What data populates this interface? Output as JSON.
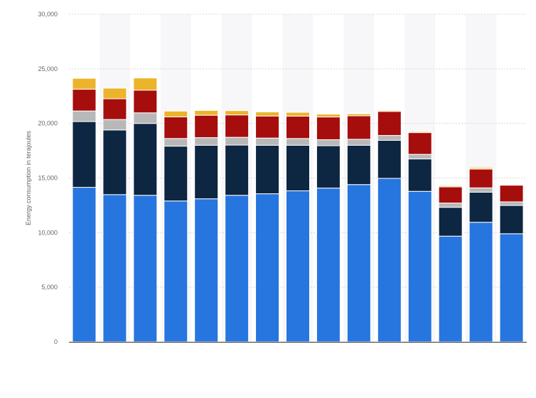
{
  "chart_data": {
    "type": "bar",
    "stacked": true,
    "title": "",
    "xlabel": "",
    "ylabel": "Energy consumption in terajoules",
    "ylim": [
      0,
      30000
    ],
    "yticks": [
      0,
      5000,
      10000,
      15000,
      20000,
      25000,
      30000
    ],
    "ytick_labels": [
      "0",
      "5,000",
      "10,000",
      "15,000",
      "20,000",
      "25,000",
      "30,000"
    ],
    "grid": true,
    "legend": "none",
    "colors": {
      "series": [
        "#2775df",
        "#0d2641",
        "#b8b8b8",
        "#a60d0d",
        "#ecb42a",
        "#efdfae"
      ],
      "grid": "#d8d8d8",
      "axis": "#333333",
      "alt_band": "#f7f7f9"
    },
    "categories": [
      "",
      "",
      "",
      "",
      "",
      "",
      "",
      "",
      "",
      "",
      "",
      "",
      "",
      "",
      ""
    ],
    "series": [
      {
        "values": [
          14150,
          13480,
          13420,
          12900,
          13100,
          13420,
          13560,
          13830,
          14080,
          14400,
          14970,
          13780,
          9680,
          10950,
          9900
        ]
      },
      {
        "values": [
          6020,
          5920,
          6580,
          5020,
          4900,
          4600,
          4440,
          4170,
          3880,
          3600,
          3480,
          2970,
          2640,
          2750,
          2590
        ]
      },
      {
        "values": [
          970,
          960,
          970,
          700,
          700,
          710,
          660,
          620,
          550,
          550,
          450,
          420,
          390,
          400,
          330
        ]
      },
      {
        "values": [
          1990,
          1900,
          2080,
          1980,
          2050,
          2050,
          2020,
          2050,
          2080,
          2150,
          2200,
          1990,
          1480,
          1720,
          1520
        ]
      },
      {
        "values": [
          1000,
          970,
          1110,
          530,
          440,
          390,
          370,
          350,
          260,
          190,
          100,
          100,
          100,
          120,
          0
        ]
      },
      {
        "values": [
          0,
          0,
          0,
          0,
          0,
          0,
          0,
          0,
          0,
          60,
          50,
          50,
          100,
          130,
          0
        ]
      }
    ]
  }
}
